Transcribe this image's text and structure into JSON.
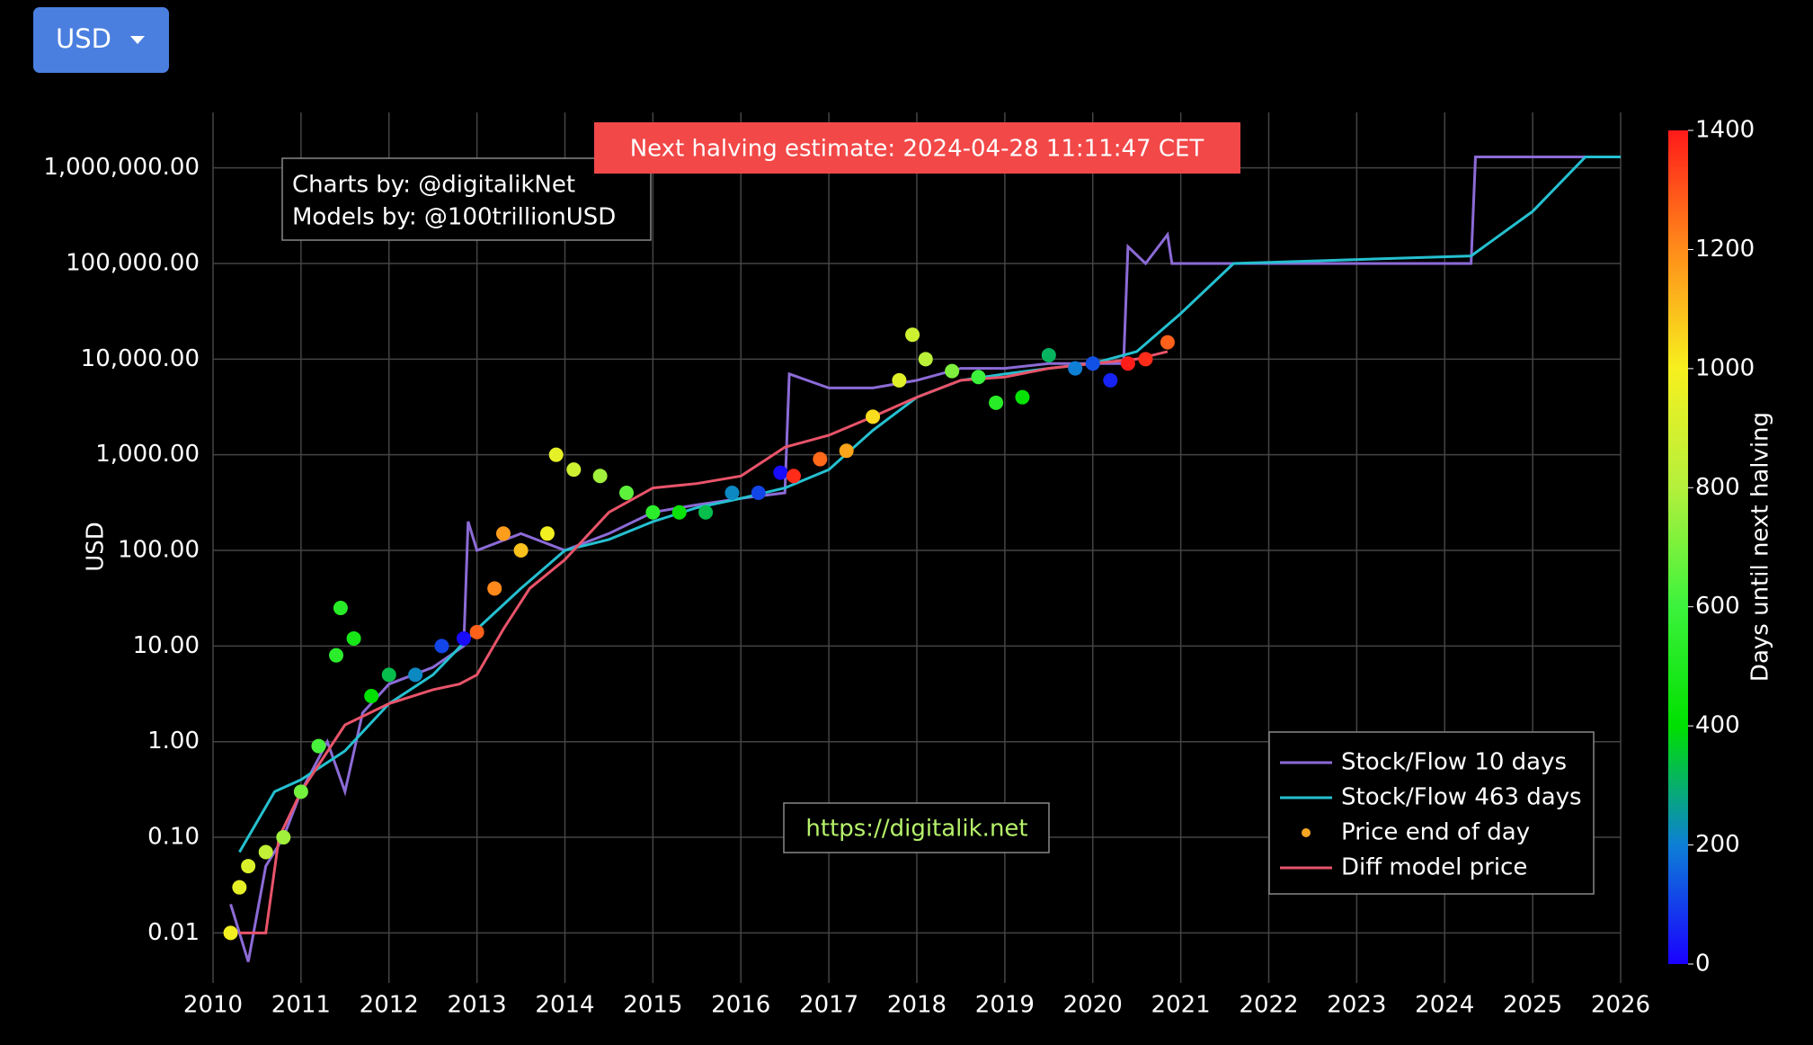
{
  "button": {
    "label": "USD"
  },
  "chart_data": {
    "type": "line",
    "y_label": "USD",
    "log_y": true,
    "grid": true,
    "xlim": [
      2010,
      2026
    ],
    "xticks": [
      2010,
      2011,
      2012,
      2013,
      2014,
      2015,
      2016,
      2017,
      2018,
      2019,
      2020,
      2021,
      2022,
      2023,
      2024,
      2025,
      2026
    ],
    "ylim": [
      0.003,
      3800000
    ],
    "yticks": [
      0.01,
      {
        "value": 0.1,
        "label": "0.10"
      },
      {
        "value": 1,
        "label": "1.00"
      },
      {
        "value": 10,
        "label": "10.00"
      },
      {
        "value": 100,
        "label": "100.00"
      },
      {
        "value": 1000,
        "label": "1,000.00"
      },
      {
        "value": 10000,
        "label": "10,000.00"
      },
      {
        "value": 100000,
        "label": "100,000.00"
      },
      {
        "value": 1000000,
        "label": "1,000,000.00"
      }
    ],
    "annotations": [
      "Charts by: @digitalikNet",
      "Models by: @100trillionUSD",
      "Next halving estimate: 2024-04-28 11:11:47 CET",
      "https://digitalik.net"
    ],
    "legend_position": "lower right",
    "colorbar": {
      "title": "Days until next halving",
      "clim": [
        0,
        1400
      ],
      "ticks": [
        0,
        200,
        400,
        600,
        800,
        1000,
        1200,
        1400
      ],
      "colorscale": [
        "#1a00ff",
        "#0d7fd6",
        "#00e000",
        "#3cf23c",
        "#b4f03c",
        "#f7f01e",
        "#ff8c1a",
        "#ff1a1a"
      ]
    },
    "series": [
      {
        "name": "Stock/Flow 10 days",
        "color": "#8c6bd6",
        "kind": "line",
        "x": [
          2010.2,
          2010.4,
          2010.6,
          2010.8,
          2011.0,
          2011.3,
          2011.5,
          2011.7,
          2012.0,
          2012.5,
          2012.85,
          2012.9,
          2013.0,
          2013.5,
          2014.0,
          2014.5,
          2015.0,
          2015.5,
          2016.0,
          2016.5,
          2016.55,
          2017.0,
          2017.5,
          2018.0,
          2018.5,
          2019.0,
          2019.5,
          2020.0,
          2020.35,
          2020.4,
          2020.6,
          2020.85,
          2020.9,
          2024.3,
          2024.35,
          2026.0
        ],
        "values": [
          0.02,
          0.005,
          0.05,
          0.1,
          0.3,
          1,
          0.3,
          2,
          4,
          6,
          10,
          200,
          100,
          150,
          100,
          150,
          250,
          300,
          350,
          400,
          7000,
          5000,
          5000,
          6000,
          8000,
          8000,
          9000,
          9000,
          9000,
          150000,
          100000,
          200000,
          100000,
          100000,
          1300000,
          1300000
        ]
      },
      {
        "name": "Stock/Flow 463 days",
        "color": "#25c0d0",
        "kind": "line",
        "x": [
          2010.3,
          2010.7,
          2011.0,
          2011.5,
          2012.0,
          2012.5,
          2013.0,
          2013.5,
          2014.0,
          2014.5,
          2015.0,
          2015.5,
          2016.0,
          2016.5,
          2017.0,
          2017.5,
          2018.0,
          2018.5,
          2019.0,
          2019.5,
          2020.0,
          2020.5,
          2021.0,
          2021.6,
          2024.3,
          2025.0,
          2025.6,
          2026.0
        ],
        "values": [
          0.07,
          0.3,
          0.4,
          0.8,
          2.5,
          5,
          15,
          40,
          100,
          130,
          200,
          280,
          350,
          450,
          700,
          1800,
          4000,
          6000,
          7000,
          8000,
          9000,
          12000,
          30000,
          100000,
          120000,
          350000,
          1300000,
          1300000
        ]
      },
      {
        "name": "Price end of day",
        "color": "#f5a623",
        "kind": "scatter",
        "x": [
          2010.2,
          2010.3,
          2010.4,
          2010.6,
          2010.8,
          2011.0,
          2011.2,
          2011.4,
          2011.45,
          2011.6,
          2011.8,
          2012.0,
          2012.3,
          2012.6,
          2012.85,
          2013.0,
          2013.2,
          2013.3,
          2013.5,
          2013.8,
          2013.9,
          2014.1,
          2014.4,
          2014.7,
          2015.0,
          2015.3,
          2015.6,
          2015.9,
          2016.2,
          2016.45,
          2016.6,
          2016.9,
          2017.2,
          2017.5,
          2017.8,
          2017.95,
          2018.1,
          2018.4,
          2018.7,
          2018.9,
          2019.2,
          2019.5,
          2019.8,
          2020.0,
          2020.2,
          2020.4,
          2020.6,
          2020.85
        ],
        "values": [
          0.01,
          0.03,
          0.05,
          0.07,
          0.1,
          0.3,
          0.9,
          8,
          25,
          12,
          3,
          5,
          5,
          10,
          12,
          14,
          40,
          150,
          100,
          150,
          1000,
          700,
          600,
          400,
          250,
          250,
          250,
          400,
          400,
          650,
          600,
          900,
          1100,
          2500,
          6000,
          18000,
          10000,
          7500,
          6500,
          3500,
          4000,
          11000,
          8000,
          9000,
          6000,
          9000,
          10000,
          15000
        ],
        "days": [
          986,
          949,
          912,
          840,
          767,
          694,
          620,
          548,
          529,
          475,
          402,
          329,
          219,
          110,
          18,
          1278,
          1205,
          1168,
          1095,
          986,
          949,
          876,
          767,
          657,
          548,
          438,
          329,
          219,
          110,
          18,
          1369,
          1259,
          1150,
          1040,
          931,
          876,
          821,
          712,
          602,
          529,
          420,
          310,
          201,
          128,
          55,
          1395,
          1369,
          1278
        ]
      },
      {
        "name": "Diff model price",
        "color": "#e8546a",
        "kind": "line",
        "x": [
          2010.3,
          2010.6,
          2010.75,
          2011.0,
          2011.5,
          2012.0,
          2012.5,
          2012.8,
          2013.0,
          2013.3,
          2013.6,
          2014.0,
          2014.5,
          2015.0,
          2015.5,
          2016.0,
          2016.5,
          2017.0,
          2017.5,
          2018.0,
          2018.5,
          2019.0,
          2019.5,
          2020.0,
          2020.5,
          2020.85
        ],
        "values": [
          0.01,
          0.01,
          0.1,
          0.3,
          1.5,
          2.5,
          3.5,
          4,
          5,
          15,
          40,
          80,
          250,
          450,
          500,
          600,
          1200,
          1600,
          2500,
          4000,
          6000,
          6500,
          8000,
          9000,
          10000,
          12000
        ]
      }
    ]
  }
}
